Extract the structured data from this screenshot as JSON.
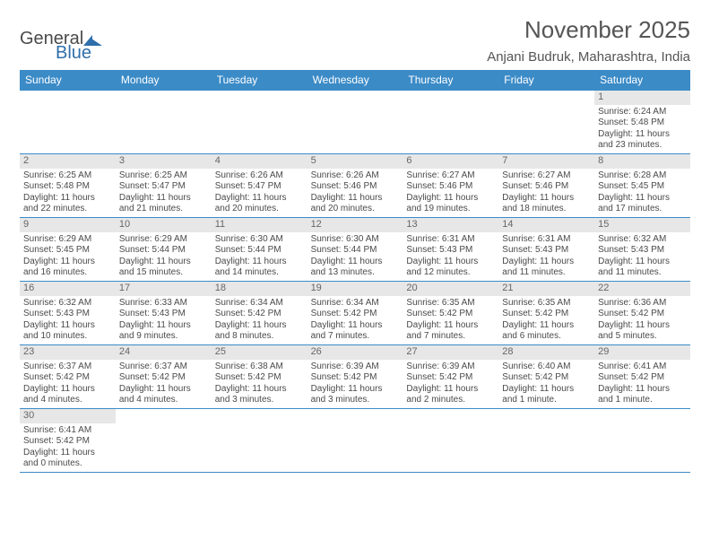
{
  "logo": {
    "part1": "General",
    "part2": "Blue"
  },
  "title": "November 2025",
  "location": "Anjani Budruk, Maharashtra, India",
  "colors": {
    "header_bg": "#3b8bc7",
    "header_text": "#ffffff",
    "daynum_bg": "#e7e7e7",
    "text": "#4a4a4a",
    "row_divider": "#3b8bc7"
  },
  "weekdays": [
    "Sunday",
    "Monday",
    "Tuesday",
    "Wednesday",
    "Thursday",
    "Friday",
    "Saturday"
  ],
  "weeks": [
    [
      null,
      null,
      null,
      null,
      null,
      null,
      {
        "n": 1,
        "sr": "6:24 AM",
        "ss": "5:48 PM",
        "dl": "11 hours and 23 minutes."
      }
    ],
    [
      {
        "n": 2,
        "sr": "6:25 AM",
        "ss": "5:48 PM",
        "dl": "11 hours and 22 minutes."
      },
      {
        "n": 3,
        "sr": "6:25 AM",
        "ss": "5:47 PM",
        "dl": "11 hours and 21 minutes."
      },
      {
        "n": 4,
        "sr": "6:26 AM",
        "ss": "5:47 PM",
        "dl": "11 hours and 20 minutes."
      },
      {
        "n": 5,
        "sr": "6:26 AM",
        "ss": "5:46 PM",
        "dl": "11 hours and 20 minutes."
      },
      {
        "n": 6,
        "sr": "6:27 AM",
        "ss": "5:46 PM",
        "dl": "11 hours and 19 minutes."
      },
      {
        "n": 7,
        "sr": "6:27 AM",
        "ss": "5:46 PM",
        "dl": "11 hours and 18 minutes."
      },
      {
        "n": 8,
        "sr": "6:28 AM",
        "ss": "5:45 PM",
        "dl": "11 hours and 17 minutes."
      }
    ],
    [
      {
        "n": 9,
        "sr": "6:29 AM",
        "ss": "5:45 PM",
        "dl": "11 hours and 16 minutes."
      },
      {
        "n": 10,
        "sr": "6:29 AM",
        "ss": "5:44 PM",
        "dl": "11 hours and 15 minutes."
      },
      {
        "n": 11,
        "sr": "6:30 AM",
        "ss": "5:44 PM",
        "dl": "11 hours and 14 minutes."
      },
      {
        "n": 12,
        "sr": "6:30 AM",
        "ss": "5:44 PM",
        "dl": "11 hours and 13 minutes."
      },
      {
        "n": 13,
        "sr": "6:31 AM",
        "ss": "5:43 PM",
        "dl": "11 hours and 12 minutes."
      },
      {
        "n": 14,
        "sr": "6:31 AM",
        "ss": "5:43 PM",
        "dl": "11 hours and 11 minutes."
      },
      {
        "n": 15,
        "sr": "6:32 AM",
        "ss": "5:43 PM",
        "dl": "11 hours and 11 minutes."
      }
    ],
    [
      {
        "n": 16,
        "sr": "6:32 AM",
        "ss": "5:43 PM",
        "dl": "11 hours and 10 minutes."
      },
      {
        "n": 17,
        "sr": "6:33 AM",
        "ss": "5:43 PM",
        "dl": "11 hours and 9 minutes."
      },
      {
        "n": 18,
        "sr": "6:34 AM",
        "ss": "5:42 PM",
        "dl": "11 hours and 8 minutes."
      },
      {
        "n": 19,
        "sr": "6:34 AM",
        "ss": "5:42 PM",
        "dl": "11 hours and 7 minutes."
      },
      {
        "n": 20,
        "sr": "6:35 AM",
        "ss": "5:42 PM",
        "dl": "11 hours and 7 minutes."
      },
      {
        "n": 21,
        "sr": "6:35 AM",
        "ss": "5:42 PM",
        "dl": "11 hours and 6 minutes."
      },
      {
        "n": 22,
        "sr": "6:36 AM",
        "ss": "5:42 PM",
        "dl": "11 hours and 5 minutes."
      }
    ],
    [
      {
        "n": 23,
        "sr": "6:37 AM",
        "ss": "5:42 PM",
        "dl": "11 hours and 4 minutes."
      },
      {
        "n": 24,
        "sr": "6:37 AM",
        "ss": "5:42 PM",
        "dl": "11 hours and 4 minutes."
      },
      {
        "n": 25,
        "sr": "6:38 AM",
        "ss": "5:42 PM",
        "dl": "11 hours and 3 minutes."
      },
      {
        "n": 26,
        "sr": "6:39 AM",
        "ss": "5:42 PM",
        "dl": "11 hours and 3 minutes."
      },
      {
        "n": 27,
        "sr": "6:39 AM",
        "ss": "5:42 PM",
        "dl": "11 hours and 2 minutes."
      },
      {
        "n": 28,
        "sr": "6:40 AM",
        "ss": "5:42 PM",
        "dl": "11 hours and 1 minute."
      },
      {
        "n": 29,
        "sr": "6:41 AM",
        "ss": "5:42 PM",
        "dl": "11 hours and 1 minute."
      }
    ],
    [
      {
        "n": 30,
        "sr": "6:41 AM",
        "ss": "5:42 PM",
        "dl": "11 hours and 0 minutes."
      },
      null,
      null,
      null,
      null,
      null,
      null
    ]
  ],
  "labels": {
    "sunrise_prefix": "Sunrise: ",
    "sunset_prefix": "Sunset: ",
    "daylight_prefix": "Daylight: "
  }
}
